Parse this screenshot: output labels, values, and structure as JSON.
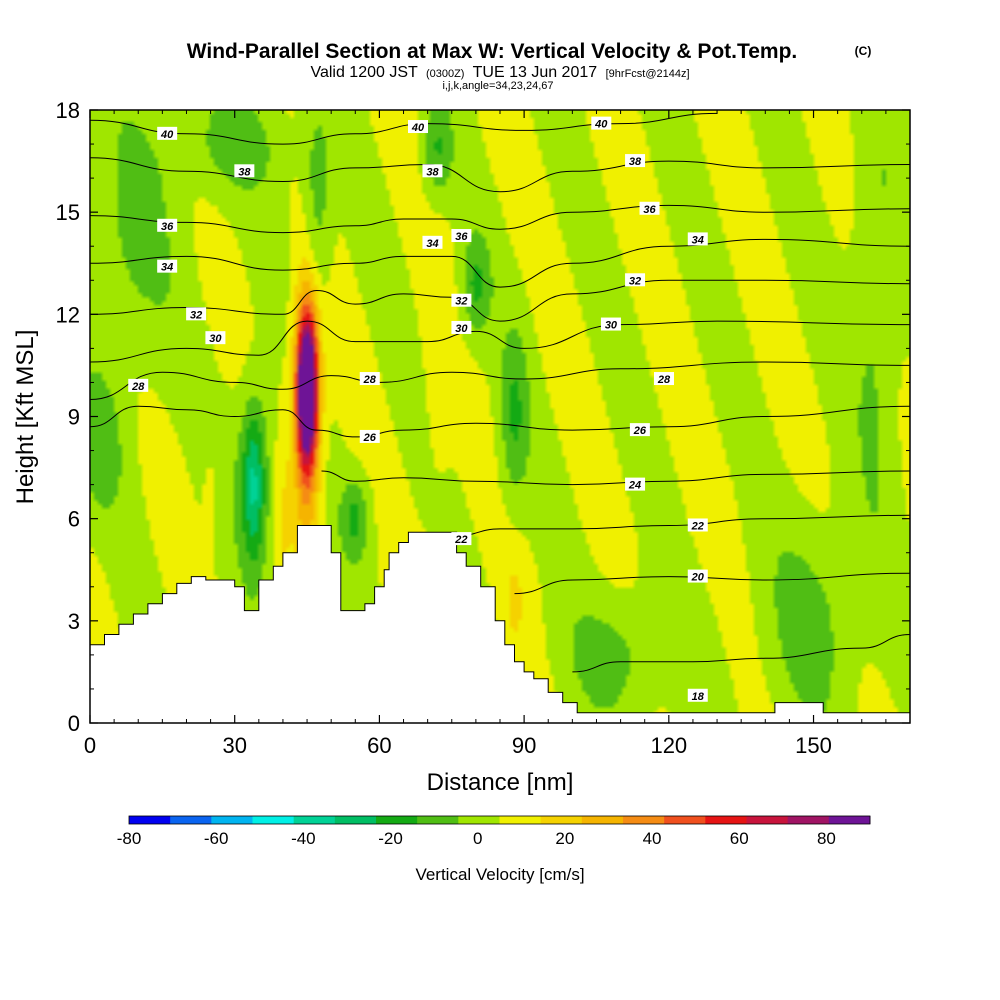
{
  "header": {
    "title": "Wind-Parallel Section at Max W: Vertical Velocity & Pot.Temp.",
    "copyright": "(C)",
    "valid_prefix": "Valid 1200 JST",
    "valid_utc": "(0300Z)",
    "valid_date": "TUE 13 Jun 2017",
    "forecast": "[9hrFcst@2144z]",
    "indices": "i,j,k,angle=34,23,24,67"
  },
  "chart_data": {
    "type": "heatmap",
    "title": "Wind-Parallel Section at Max W: Vertical Velocity & Pot.Temp.",
    "xlabel": "Distance [nm]",
    "ylabel": "Height [Kft MSL]",
    "xlim": [
      0,
      170
    ],
    "ylim": [
      0,
      18
    ],
    "x_ticks": [
      0,
      30,
      60,
      90,
      120,
      150
    ],
    "y_ticks": [
      0,
      3,
      6,
      9,
      12,
      15,
      18
    ],
    "colorbar": {
      "label": "Vertical Velocity [cm/s]",
      "range": [
        -80,
        90
      ],
      "tick_values": [
        -80,
        -60,
        -40,
        -20,
        0,
        20,
        40,
        60,
        80
      ],
      "colors": [
        "#0000f0",
        "#0a64f0",
        "#00b4f0",
        "#00f0e6",
        "#00d296",
        "#00be64",
        "#14aa14",
        "#50be14",
        "#a0e600",
        "#f0f000",
        "#f5d200",
        "#f5b400",
        "#f58c14",
        "#f0501e",
        "#e61414",
        "#c8143c",
        "#a01464",
        "#6e1496"
      ]
    },
    "background_value": 5,
    "velocity_features": [
      {
        "x": 45,
        "y": 9.8,
        "wx": 1.6,
        "wy": 1.6,
        "value": 88
      },
      {
        "x": 45,
        "y": 9.8,
        "wx": 2.4,
        "wy": 2.8,
        "value": 55
      },
      {
        "x": 45,
        "y": 9.0,
        "wx": 3.0,
        "wy": 4.2,
        "value": 30
      },
      {
        "x": 34,
        "y": 7.0,
        "wx": 2.2,
        "wy": 2.2,
        "value": -22
      },
      {
        "x": 34,
        "y": 7.2,
        "wx": 4.5,
        "wy": 2.8,
        "value": -10
      },
      {
        "x": 55,
        "y": 6.0,
        "wx": 3.0,
        "wy": 1.2,
        "value": -15
      },
      {
        "x": 47,
        "y": 15.0,
        "wx": 3.0,
        "wy": 3.0,
        "value": -12
      },
      {
        "x": 72,
        "y": 16.8,
        "wx": 3.0,
        "wy": 1.5,
        "value": -14
      },
      {
        "x": 80,
        "y": 12.8,
        "wx": 3.0,
        "wy": 1.5,
        "value": -14
      },
      {
        "x": 88,
        "y": 9.0,
        "wx": 3.0,
        "wy": 2.5,
        "value": -13
      },
      {
        "x": 40,
        "y": 6.0,
        "wx": 1.5,
        "wy": 3.5,
        "value": 12
      },
      {
        "x": 25,
        "y": 6.5,
        "wx": 1.5,
        "wy": 1.5,
        "value": 12
      },
      {
        "x": 72,
        "y": 10.0,
        "wx": 3.0,
        "wy": 5.0,
        "value": 10
      },
      {
        "x": 88,
        "y": 3.5,
        "wx": 2.0,
        "wy": 1.5,
        "value": 14
      },
      {
        "x": 8,
        "y": 14.0,
        "wx": 10.0,
        "wy": 4.0,
        "value": -7
      },
      {
        "x": 30,
        "y": 17.0,
        "wx": 12.0,
        "wy": 1.5,
        "value": -8
      },
      {
        "x": 110,
        "y": 2.0,
        "wx": 12.0,
        "wy": 1.8,
        "value": -8
      },
      {
        "x": 150,
        "y": 3.0,
        "wx": 10.0,
        "wy": 3.0,
        "value": -8
      },
      {
        "x": 163,
        "y": 12.0,
        "wx": 5.0,
        "wy": 6.0,
        "value": -7
      },
      {
        "x": 2,
        "y": 8.0,
        "wx": 5.0,
        "wy": 2.0,
        "value": -8
      }
    ],
    "terrain_top": [
      [
        0,
        2.3
      ],
      [
        3,
        2.6
      ],
      [
        6,
        2.9
      ],
      [
        9,
        3.2
      ],
      [
        12,
        3.5
      ],
      [
        15,
        3.8
      ],
      [
        18,
        4.1
      ],
      [
        21,
        4.3
      ],
      [
        24,
        4.2
      ],
      [
        27,
        4.2
      ],
      [
        30,
        4.0
      ],
      [
        32,
        3.3
      ],
      [
        35,
        4.2
      ],
      [
        38,
        4.6
      ],
      [
        40,
        5.0
      ],
      [
        43,
        5.8
      ],
      [
        48,
        5.8
      ],
      [
        50,
        5.0
      ],
      [
        52,
        3.3
      ],
      [
        57,
        3.5
      ],
      [
        59,
        4.0
      ],
      [
        61,
        4.5
      ],
      [
        62,
        5.0
      ],
      [
        64,
        5.3
      ],
      [
        66,
        5.6
      ],
      [
        74,
        5.6
      ],
      [
        76,
        5.0
      ],
      [
        78,
        4.6
      ],
      [
        81,
        4.0
      ],
      [
        84,
        3.0
      ],
      [
        86,
        2.3
      ],
      [
        88,
        1.8
      ],
      [
        90,
        1.5
      ],
      [
        92,
        1.3
      ],
      [
        95,
        0.9
      ],
      [
        98,
        0.6
      ],
      [
        101,
        0.3
      ],
      [
        140,
        0.3
      ],
      [
        142,
        0.6
      ],
      [
        150,
        0.6
      ],
      [
        152,
        0.3
      ],
      [
        170,
        0.3
      ]
    ],
    "theta_contours": [
      {
        "label": "40",
        "points": [
          [
            0,
            17.7
          ],
          [
            20,
            17.3
          ],
          [
            40,
            17.0
          ],
          [
            55,
            17.3
          ],
          [
            70,
            17.6
          ],
          [
            90,
            17.4
          ],
          [
            110,
            17.6
          ],
          [
            130,
            17.9
          ]
        ]
      },
      {
        "label": "38",
        "points": [
          [
            0,
            16.6
          ],
          [
            20,
            16.2
          ],
          [
            40,
            15.9
          ],
          [
            55,
            16.3
          ],
          [
            70,
            16.4
          ],
          [
            85,
            15.6
          ],
          [
            100,
            16.2
          ],
          [
            120,
            16.5
          ],
          [
            140,
            16.3
          ],
          [
            170,
            16.4
          ]
        ]
      },
      {
        "label": "36",
        "points": [
          [
            0,
            14.9
          ],
          [
            20,
            14.7
          ],
          [
            40,
            14.4
          ],
          [
            55,
            14.6
          ],
          [
            65,
            14.8
          ],
          [
            75,
            14.8
          ],
          [
            85,
            14.5
          ],
          [
            100,
            15.0
          ],
          [
            120,
            15.2
          ],
          [
            140,
            15.0
          ],
          [
            170,
            15.1
          ]
        ]
      },
      {
        "label": "34",
        "points": [
          [
            0,
            13.5
          ],
          [
            20,
            13.7
          ],
          [
            40,
            13.3
          ],
          [
            55,
            13.5
          ],
          [
            65,
            13.7
          ],
          [
            75,
            13.7
          ],
          [
            85,
            12.8
          ],
          [
            100,
            13.5
          ],
          [
            120,
            14.0
          ],
          [
            140,
            14.2
          ],
          [
            170,
            14.0
          ]
        ]
      },
      {
        "label": "32",
        "points": [
          [
            0,
            12.0
          ],
          [
            20,
            12.2
          ],
          [
            40,
            12.0
          ],
          [
            47,
            12.7
          ],
          [
            55,
            12.3
          ],
          [
            65,
            12.6
          ],
          [
            75,
            12.5
          ],
          [
            85,
            11.8
          ],
          [
            100,
            12.6
          ],
          [
            120,
            13.0
          ],
          [
            140,
            13.0
          ],
          [
            170,
            12.9
          ]
        ]
      },
      {
        "label": "30",
        "points": [
          [
            0,
            10.6
          ],
          [
            20,
            11.0
          ],
          [
            35,
            10.8
          ],
          [
            45,
            11.8
          ],
          [
            55,
            11.2
          ],
          [
            70,
            11.2
          ],
          [
            80,
            11.5
          ],
          [
            90,
            11.0
          ],
          [
            110,
            11.7
          ],
          [
            130,
            11.8
          ],
          [
            170,
            11.7
          ]
        ]
      },
      {
        "label": "28",
        "points": [
          [
            0,
            9.5
          ],
          [
            15,
            10.3
          ],
          [
            30,
            10.0
          ],
          [
            40,
            9.8
          ],
          [
            50,
            10.2
          ],
          [
            60,
            10.0
          ],
          [
            75,
            10.3
          ],
          [
            90,
            10.1
          ],
          [
            110,
            10.4
          ],
          [
            140,
            10.6
          ],
          [
            170,
            10.5
          ]
        ]
      },
      {
        "label": "26",
        "points": [
          [
            0,
            8.7
          ],
          [
            10,
            9.3
          ],
          [
            20,
            9.2
          ],
          [
            30,
            9.0
          ],
          [
            40,
            9.2
          ],
          [
            47,
            8.6
          ],
          [
            55,
            8.4
          ],
          [
            65,
            8.6
          ],
          [
            80,
            8.8
          ],
          [
            100,
            8.6
          ],
          [
            120,
            8.7
          ],
          [
            140,
            9.0
          ],
          [
            170,
            9.3
          ]
        ]
      },
      {
        "label": "24",
        "points": [
          [
            48,
            7.4
          ],
          [
            55,
            7.1
          ],
          [
            65,
            7.2
          ],
          [
            80,
            7.1
          ],
          [
            100,
            7.0
          ],
          [
            120,
            7.1
          ],
          [
            140,
            7.3
          ],
          [
            170,
            7.4
          ]
        ]
      },
      {
        "label": "22",
        "points": [
          [
            76,
            5.5
          ],
          [
            85,
            5.7
          ],
          [
            100,
            5.7
          ],
          [
            120,
            5.8
          ],
          [
            140,
            6.0
          ],
          [
            170,
            6.1
          ]
        ]
      },
      {
        "label": "20",
        "points": [
          [
            88,
            3.8
          ],
          [
            100,
            4.2
          ],
          [
            120,
            4.3
          ],
          [
            140,
            4.2
          ],
          [
            170,
            4.4
          ]
        ]
      },
      {
        "label": "18",
        "points": [
          [
            100,
            1.5
          ],
          [
            110,
            1.8
          ],
          [
            125,
            1.8
          ],
          [
            140,
            1.9
          ],
          [
            160,
            2.2
          ],
          [
            170,
            2.6
          ]
        ]
      }
    ],
    "contour_labels": [
      {
        "text": "40",
        "x": 16,
        "y": 17.3
      },
      {
        "text": "40",
        "x": 68,
        "y": 17.5
      },
      {
        "text": "40",
        "x": 106,
        "y": 17.6
      },
      {
        "text": "38",
        "x": 32,
        "y": 16.2
      },
      {
        "text": "38",
        "x": 71,
        "y": 16.2
      },
      {
        "text": "38",
        "x": 113,
        "y": 16.5
      },
      {
        "text": "36",
        "x": 16,
        "y": 14.6
      },
      {
        "text": "36",
        "x": 77,
        "y": 14.3
      },
      {
        "text": "36",
        "x": 116,
        "y": 15.1
      },
      {
        "text": "34",
        "x": 16,
        "y": 13.4
      },
      {
        "text": "34",
        "x": 71,
        "y": 14.1
      },
      {
        "text": "34",
        "x": 126,
        "y": 14.2
      },
      {
        "text": "32",
        "x": 22,
        "y": 12.0
      },
      {
        "text": "32",
        "x": 77,
        "y": 12.4
      },
      {
        "text": "32",
        "x": 113,
        "y": 13.0
      },
      {
        "text": "30",
        "x": 26,
        "y": 11.3
      },
      {
        "text": "30",
        "x": 77,
        "y": 11.6
      },
      {
        "text": "30",
        "x": 108,
        "y": 11.7
      },
      {
        "text": "28",
        "x": 10,
        "y": 9.9
      },
      {
        "text": "28",
        "x": 58,
        "y": 10.1
      },
      {
        "text": "28",
        "x": 119,
        "y": 10.1
      },
      {
        "text": "26",
        "x": 58,
        "y": 8.4
      },
      {
        "text": "26",
        "x": 114,
        "y": 8.6
      },
      {
        "text": "24",
        "x": 113,
        "y": 7.0
      },
      {
        "text": "22",
        "x": 77,
        "y": 5.4
      },
      {
        "text": "22",
        "x": 126,
        "y": 5.8
      },
      {
        "text": "20",
        "x": 126,
        "y": 4.3
      },
      {
        "text": "18",
        "x": 126,
        "y": 0.8
      }
    ]
  }
}
